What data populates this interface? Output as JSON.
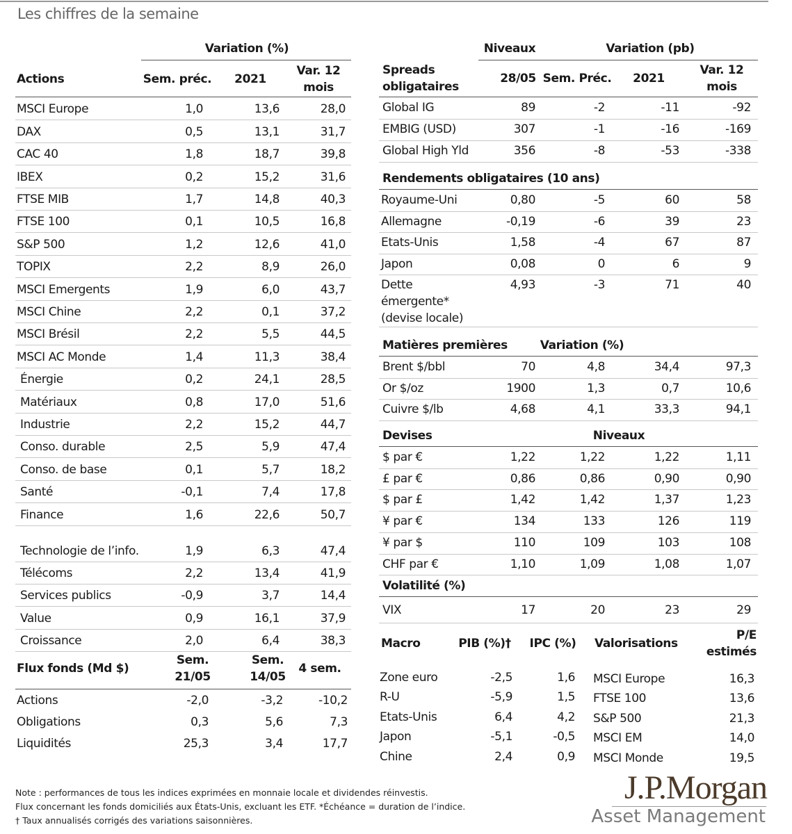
{
  "title": "Les chiffres de la semaine",
  "actions": {
    "group_header": "Variation (%)",
    "headers": [
      "Actions",
      "Sem. préc.",
      "2021",
      "Var. 12 mois"
    ],
    "rows": [
      [
        "MSCI Europe",
        "1,0",
        "13,6",
        "28,0"
      ],
      [
        "DAX",
        "0,5",
        "13,1",
        "31,7"
      ],
      [
        "CAC 40",
        "1,8",
        "18,7",
        "39,8"
      ],
      [
        "IBEX",
        "0,2",
        "15,2",
        "31,6"
      ],
      [
        "FTSE MIB",
        "1,7",
        "14,8",
        "40,3"
      ],
      [
        "FTSE 100",
        "0,1",
        "10,5",
        "16,8"
      ],
      [
        "S&P 500",
        "1,2",
        "12,6",
        "41,0"
      ],
      [
        "TOPIX",
        "2,2",
        "8,9",
        "26,0"
      ],
      [
        "MSCI Emergents",
        "1,9",
        "6,0",
        "43,7"
      ],
      [
        "MSCI Chine",
        "2,2",
        "0,1",
        "37,2"
      ],
      [
        "MSCI Brésil",
        "2,2",
        "5,5",
        "44,5"
      ],
      [
        "MSCI AC Monde",
        "1,4",
        "11,3",
        "38,4"
      ],
      [
        "Énergie",
        "0,2",
        "24,1",
        "28,5"
      ],
      [
        "Matériaux",
        "0,8",
        "17,0",
        "51,6"
      ],
      [
        "Industrie",
        "2,2",
        "15,2",
        "44,7"
      ],
      [
        "Conso. durable",
        "2,5",
        "5,9",
        "47,4"
      ],
      [
        "Conso. de base",
        "0,1",
        "5,7",
        "18,2"
      ],
      [
        "Santé",
        "-0,1",
        "7,4",
        "17,8"
      ],
      [
        "Finance",
        "1,6",
        "22,6",
        "50,7"
      ],
      [
        "Technologie de l’info.",
        "1,9",
        "6,3",
        "47,4"
      ],
      [
        "Télécoms",
        "2,2",
        "13,4",
        "41,9"
      ],
      [
        "Services publics",
        "-0,9",
        "3,7",
        "14,4"
      ],
      [
        "Value",
        "0,9",
        "16,1",
        "37,9"
      ],
      [
        "Croissance",
        "2,0",
        "6,4",
        "38,3"
      ]
    ]
  },
  "flux": {
    "headers": [
      "Flux fonds (Md $)",
      "Sem. 21/05",
      "Sem. 14/05",
      "4 sem."
    ],
    "rows": [
      [
        "Actions",
        "-2,0",
        "-3,2",
        "-10,2"
      ],
      [
        "Obligations",
        "0,3",
        "5,6",
        "7,3"
      ],
      [
        "Liquidités",
        "25,3",
        "3,4",
        "17,7"
      ]
    ]
  },
  "spreads": {
    "group_headers": [
      "Niveaux",
      "Variation (pb)"
    ],
    "headers": [
      "Spreads obligataires",
      "28/05",
      "Sem. Préc.",
      "2021",
      "Var. 12 mois"
    ],
    "rows": [
      [
        "Global IG",
        "89",
        "-2",
        "-11",
        "-92"
      ],
      [
        "EMBIG (USD)",
        "307",
        "-1",
        "-16",
        "-169"
      ],
      [
        "Global High Yld",
        "356",
        "-8",
        "-53",
        "-338"
      ]
    ]
  },
  "rendements": {
    "title": "Rendements obligataires (10 ans)",
    "rows": [
      [
        "Royaume-Uni",
        "0,80",
        "-5",
        "60",
        "58"
      ],
      [
        "Allemagne",
        "-0,19",
        "-6",
        "39",
        "23"
      ],
      [
        "Etats-Unis",
        "1,58",
        "-4",
        "67",
        "87"
      ],
      [
        "Japon",
        "0,08",
        "0",
        "6",
        "9"
      ],
      [
        "Dette émergente* (devise locale)",
        "4,93",
        "-3",
        "71",
        "40"
      ]
    ]
  },
  "matieres": {
    "headers": [
      "Matières premières",
      "Variation (%)"
    ],
    "rows": [
      [
        "Brent $/bbl",
        "70",
        "4,8",
        "34,4",
        "97,3"
      ],
      [
        "Or $/oz",
        "1900",
        "1,3",
        "0,7",
        "10,6"
      ],
      [
        "Cuivre $/lb",
        "4,68",
        "4,1",
        "33,3",
        "94,1"
      ]
    ]
  },
  "devises": {
    "headers": [
      "Devises",
      "Niveaux"
    ],
    "rows": [
      [
        "$ par €",
        "1,22",
        "1,22",
        "1,22",
        "1,11"
      ],
      [
        "£ par €",
        "0,86",
        "0,86",
        "0,90",
        "0,90"
      ],
      [
        "$ par £",
        "1,42",
        "1,42",
        "1,37",
        "1,23"
      ],
      [
        "¥ par €",
        "134",
        "133",
        "126",
        "119"
      ],
      [
        "¥ par $",
        "110",
        "109",
        "103",
        "108"
      ],
      [
        "CHF par €",
        "1,10",
        "1,09",
        "1,08",
        "1,07"
      ]
    ]
  },
  "volatilite": {
    "title": "Volatilité (%)",
    "rows": [
      [
        "VIX",
        "17",
        "20",
        "23",
        "29"
      ]
    ]
  },
  "macro": {
    "headers": [
      "Macro",
      "PIB (%)†",
      "IPC (%)"
    ],
    "rows": [
      [
        "Zone euro",
        "-2,5",
        "1,6"
      ],
      [
        "R-U",
        "-5,9",
        "1,5"
      ],
      [
        "Etats-Unis",
        "6,4",
        "4,2"
      ],
      [
        "Japon",
        "-5,1",
        "-0,5"
      ],
      [
        "Chine",
        "2,4",
        "0,9"
      ]
    ]
  },
  "valorisations": {
    "headers": [
      "Valorisations",
      "P/E estimés"
    ],
    "rows": [
      [
        "MSCI Europe",
        "16,3"
      ],
      [
        "FTSE 100",
        "13,6"
      ],
      [
        "S&P 500",
        "21,3"
      ],
      [
        "MSCI EM",
        "14,0"
      ],
      [
        "MSCI Monde",
        "19,5"
      ]
    ]
  },
  "notes": [
    "Note : performances de tous les indices exprimées en monnaie locale et dividendes réinvestis.",
    "Flux concernant les fonds domiciliés aux États-Unis, excluant les ETF. *Échéance = duration de l’indice.",
    "† Taux annualisés corrigés des variations saisonnières."
  ],
  "logo": {
    "name": "J.P.Morgan",
    "subtitle": "Asset Management"
  }
}
